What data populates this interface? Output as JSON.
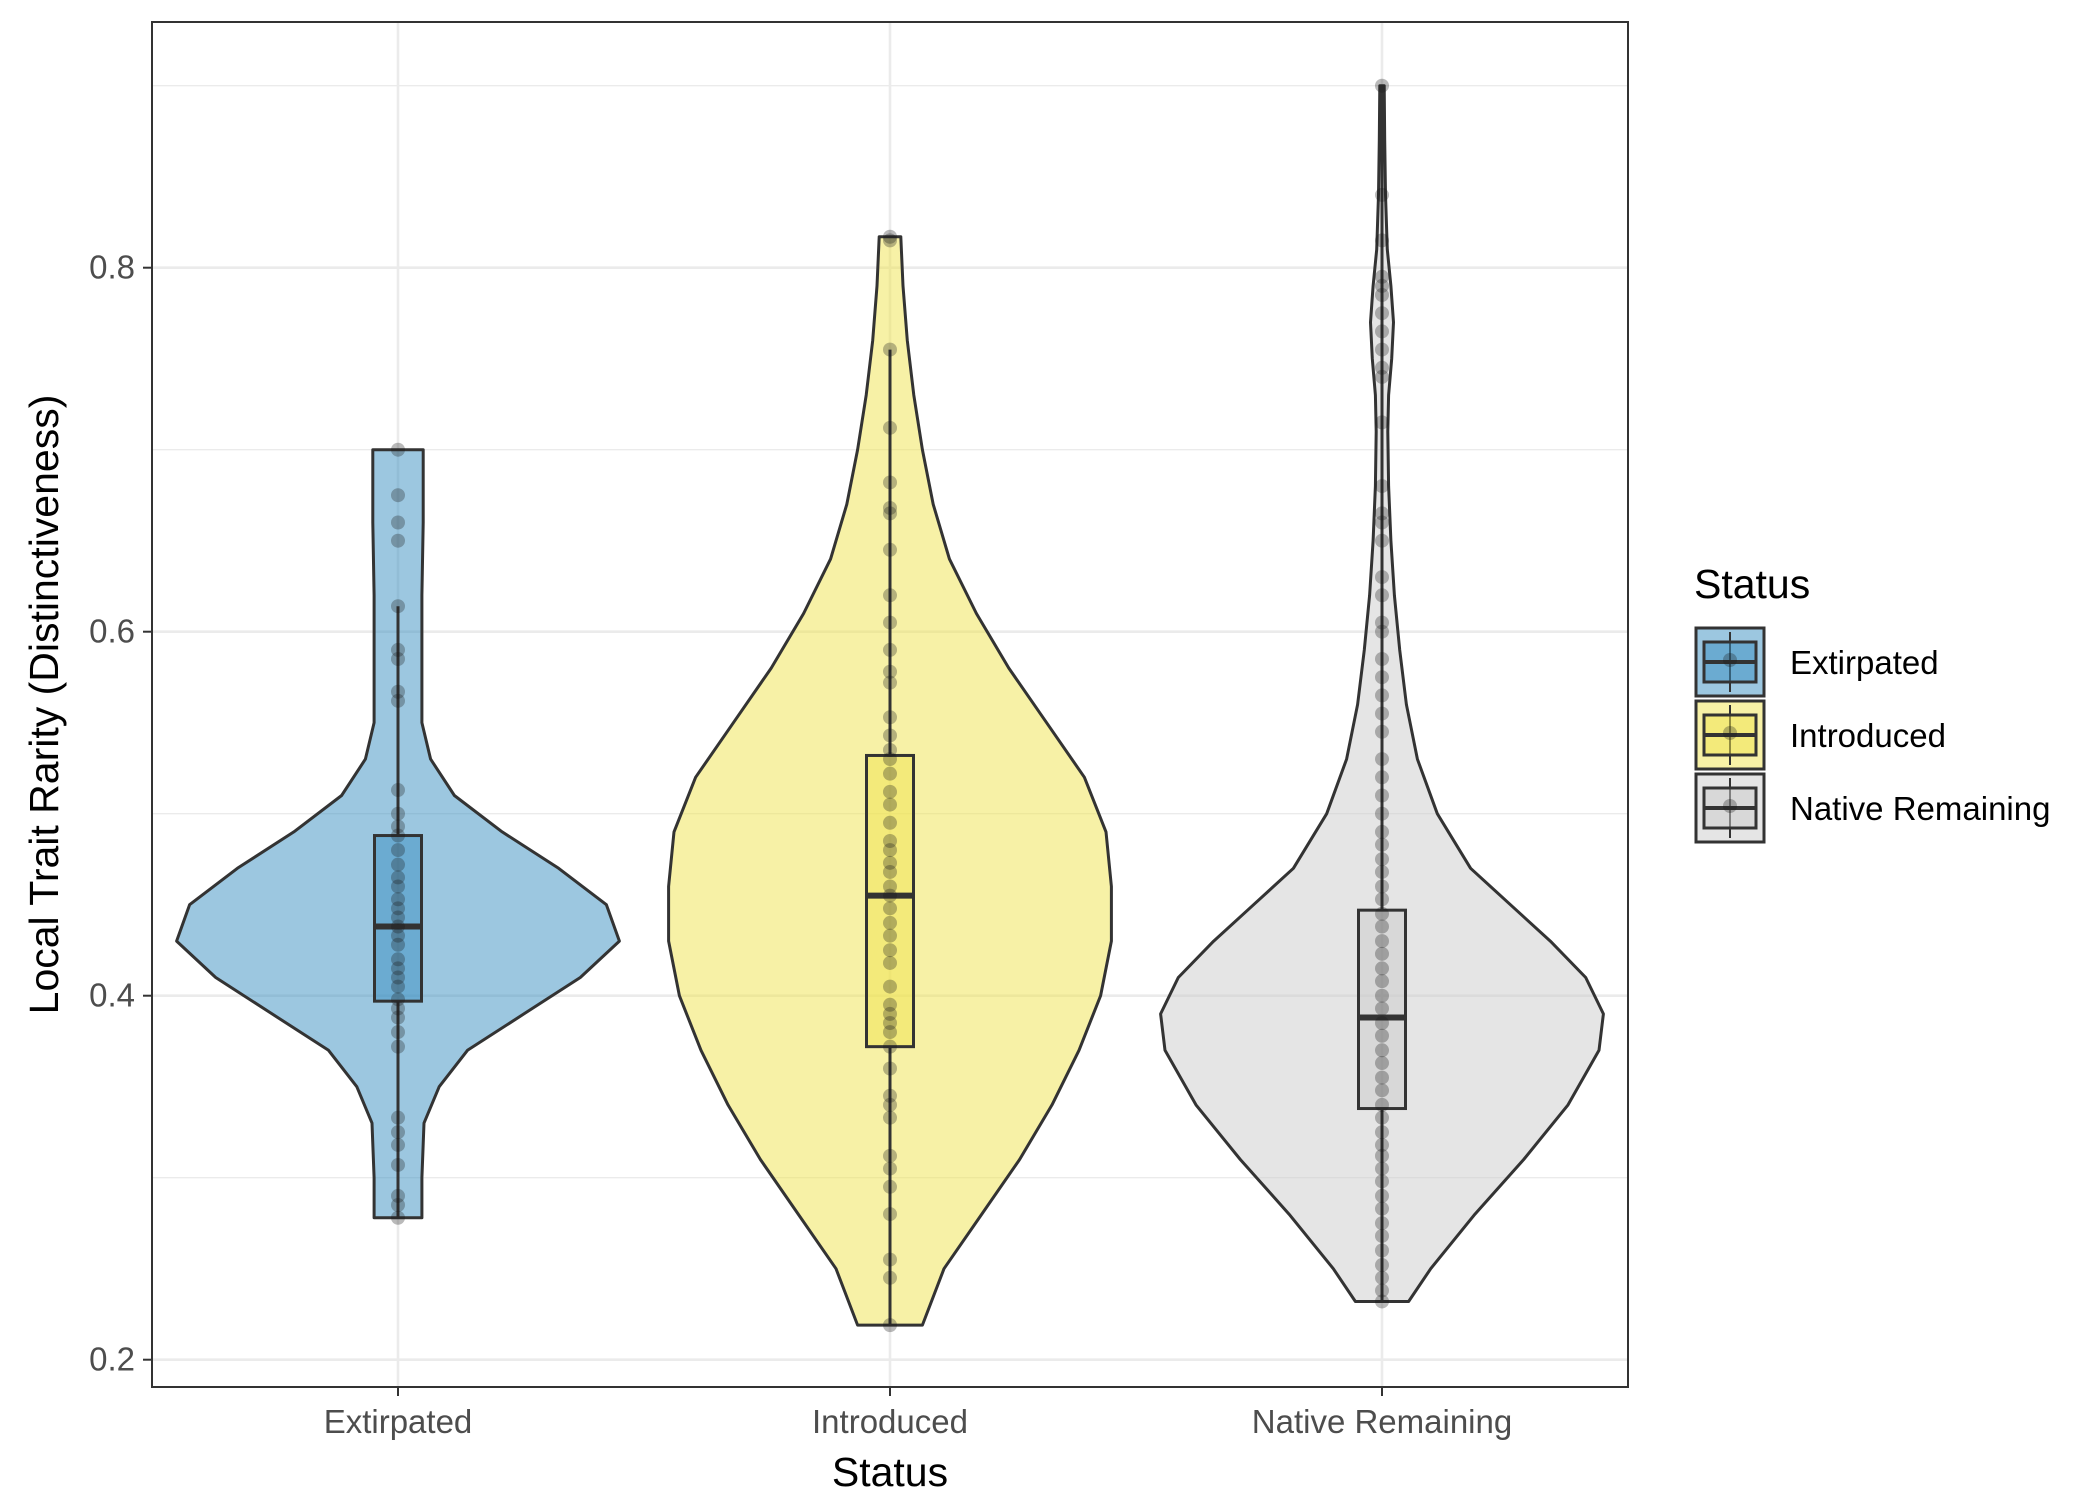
{
  "chart_data": {
    "type": "violin",
    "xlabel": "Status",
    "ylabel": "Local Trait Rarity (Distinctiveness)",
    "ylim": [
      0.185,
      0.935
    ],
    "yticks": [
      "0.2",
      "0.4",
      "0.6",
      "0.8"
    ],
    "ytick_values": [
      0.2,
      0.4,
      0.6,
      0.8
    ],
    "grid": true,
    "legend": {
      "title": "Status",
      "position": "right"
    },
    "categories": [
      "Extirpated",
      "Introduced",
      "Native Remaining"
    ],
    "series": [
      {
        "name": "Extirpated",
        "color": "#3990C2",
        "box": {
          "q1": 0.397,
          "median": 0.438,
          "q3": 0.488,
          "whisker_low": 0.278,
          "whisker_high": 0.614
        },
        "range": [
          0.278,
          0.7
        ],
        "density": [
          [
            0.278,
            0.55
          ],
          [
            0.3,
            0.55
          ],
          [
            0.33,
            0.6
          ],
          [
            0.35,
            0.95
          ],
          [
            0.37,
            1.6
          ],
          [
            0.39,
            2.9
          ],
          [
            0.41,
            4.2
          ],
          [
            0.43,
            5.1
          ],
          [
            0.45,
            4.8
          ],
          [
            0.47,
            3.7
          ],
          [
            0.49,
            2.4
          ],
          [
            0.51,
            1.3
          ],
          [
            0.53,
            0.75
          ],
          [
            0.55,
            0.55
          ],
          [
            0.58,
            0.55
          ],
          [
            0.62,
            0.55
          ],
          [
            0.66,
            0.58
          ],
          [
            0.68,
            0.58
          ],
          [
            0.7,
            0.58
          ]
        ],
        "points": [
          0.278,
          0.285,
          0.29,
          0.307,
          0.318,
          0.325,
          0.333,
          0.372,
          0.38,
          0.388,
          0.393,
          0.398,
          0.405,
          0.41,
          0.415,
          0.42,
          0.428,
          0.433,
          0.438,
          0.443,
          0.448,
          0.453,
          0.46,
          0.465,
          0.472,
          0.48,
          0.488,
          0.493,
          0.5,
          0.513,
          0.562,
          0.567,
          0.585,
          0.59,
          0.614,
          0.65,
          0.66,
          0.675,
          0.7
        ]
      },
      {
        "name": "Introduced",
        "color": "#F0E44E",
        "box": {
          "q1": 0.372,
          "median": 0.455,
          "q3": 0.532,
          "whisker_low": 0.219,
          "whisker_high": 0.755
        },
        "range": [
          0.219,
          0.817
        ],
        "density": [
          [
            0.219,
            0.3
          ],
          [
            0.25,
            0.5
          ],
          [
            0.28,
            0.85
          ],
          [
            0.31,
            1.2
          ],
          [
            0.34,
            1.5
          ],
          [
            0.37,
            1.75
          ],
          [
            0.4,
            1.95
          ],
          [
            0.43,
            2.05
          ],
          [
            0.46,
            2.05
          ],
          [
            0.49,
            2.0
          ],
          [
            0.52,
            1.8
          ],
          [
            0.55,
            1.45
          ],
          [
            0.58,
            1.1
          ],
          [
            0.61,
            0.8
          ],
          [
            0.64,
            0.55
          ],
          [
            0.67,
            0.4
          ],
          [
            0.7,
            0.3
          ],
          [
            0.73,
            0.22
          ],
          [
            0.76,
            0.16
          ],
          [
            0.79,
            0.12
          ],
          [
            0.817,
            0.1
          ]
        ],
        "points": [
          0.219,
          0.245,
          0.255,
          0.28,
          0.295,
          0.305,
          0.312,
          0.333,
          0.34,
          0.345,
          0.36,
          0.372,
          0.38,
          0.385,
          0.39,
          0.395,
          0.405,
          0.418,
          0.425,
          0.433,
          0.44,
          0.448,
          0.455,
          0.46,
          0.468,
          0.473,
          0.48,
          0.485,
          0.495,
          0.505,
          0.512,
          0.522,
          0.53,
          0.535,
          0.543,
          0.553,
          0.572,
          0.578,
          0.59,
          0.605,
          0.62,
          0.645,
          0.665,
          0.668,
          0.682,
          0.712,
          0.755,
          0.815,
          0.817
        ]
      },
      {
        "name": "Native Remaining",
        "color": "#CCCCCC",
        "box": {
          "q1": 0.338,
          "median": 0.388,
          "q3": 0.447,
          "whisker_low": 0.232,
          "whisker_high": 0.9
        },
        "range": [
          0.232,
          0.9
        ],
        "density": [
          [
            0.232,
            0.6
          ],
          [
            0.25,
            1.1
          ],
          [
            0.28,
            2.1
          ],
          [
            0.31,
            3.2
          ],
          [
            0.34,
            4.2
          ],
          [
            0.37,
            4.9
          ],
          [
            0.39,
            5.0
          ],
          [
            0.41,
            4.6
          ],
          [
            0.43,
            3.8
          ],
          [
            0.45,
            2.9
          ],
          [
            0.47,
            2.0
          ],
          [
            0.5,
            1.25
          ],
          [
            0.53,
            0.8
          ],
          [
            0.56,
            0.55
          ],
          [
            0.59,
            0.4
          ],
          [
            0.62,
            0.28
          ],
          [
            0.65,
            0.2
          ],
          [
            0.68,
            0.15
          ],
          [
            0.71,
            0.13
          ],
          [
            0.73,
            0.15
          ],
          [
            0.75,
            0.22
          ],
          [
            0.77,
            0.26
          ],
          [
            0.79,
            0.2
          ],
          [
            0.81,
            0.12
          ],
          [
            0.84,
            0.08
          ],
          [
            0.87,
            0.06
          ],
          [
            0.9,
            0.05
          ]
        ],
        "points": [
          0.232,
          0.238,
          0.245,
          0.252,
          0.26,
          0.268,
          0.275,
          0.283,
          0.29,
          0.298,
          0.305,
          0.312,
          0.318,
          0.325,
          0.333,
          0.34,
          0.348,
          0.355,
          0.363,
          0.37,
          0.378,
          0.385,
          0.393,
          0.4,
          0.408,
          0.415,
          0.423,
          0.43,
          0.438,
          0.445,
          0.453,
          0.46,
          0.468,
          0.475,
          0.483,
          0.49,
          0.5,
          0.51,
          0.52,
          0.53,
          0.545,
          0.555,
          0.565,
          0.575,
          0.585,
          0.6,
          0.605,
          0.62,
          0.63,
          0.65,
          0.66,
          0.665,
          0.68,
          0.715,
          0.74,
          0.745,
          0.755,
          0.765,
          0.775,
          0.785,
          0.79,
          0.795,
          0.815,
          0.84,
          0.9
        ]
      }
    ]
  }
}
